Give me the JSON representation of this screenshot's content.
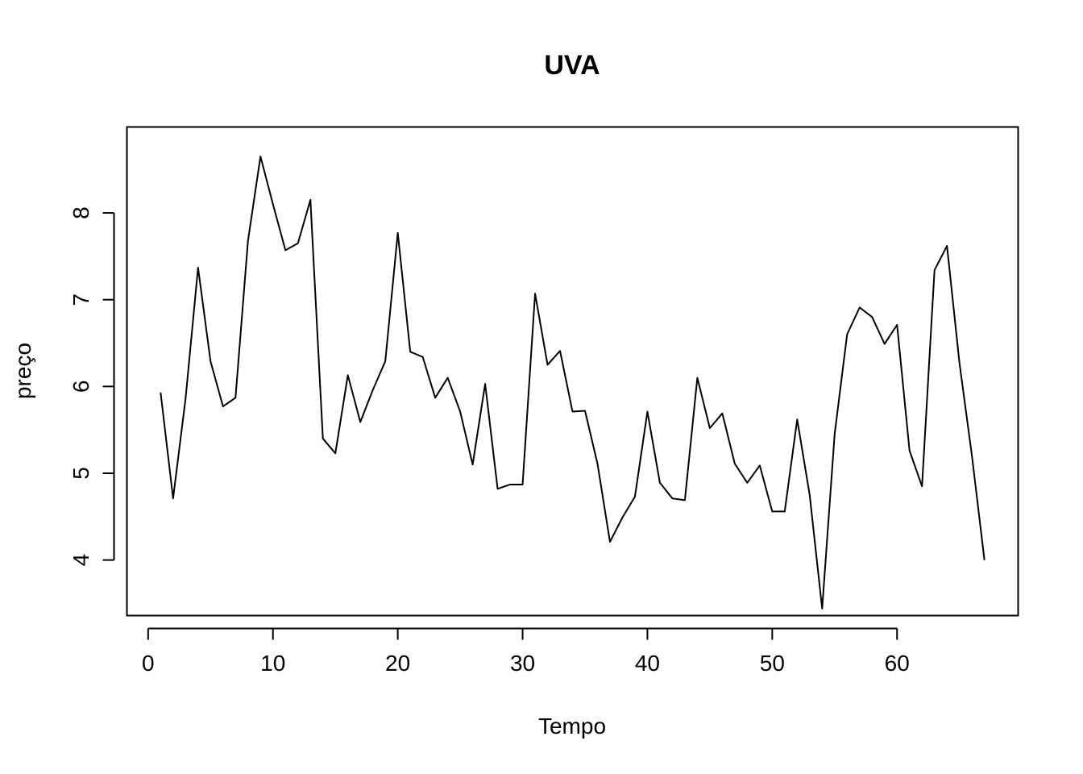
{
  "chart_data": {
    "type": "line",
    "title": "UVA",
    "xlabel": "Tempo",
    "ylabel": "preço",
    "xlim": [
      -1.7,
      69.7
    ],
    "ylim": [
      3.36,
      8.99
    ],
    "x_ticks": [
      0,
      10,
      20,
      30,
      40,
      50,
      60
    ],
    "y_ticks": [
      4,
      5,
      6,
      7,
      8
    ],
    "grid": false,
    "series": [
      {
        "color": "#000000",
        "x": [
          1,
          2,
          3,
          4,
          5,
          6,
          7,
          8,
          9,
          10,
          11,
          12,
          13,
          14,
          15,
          16,
          17,
          18,
          19,
          20,
          21,
          22,
          23,
          24,
          25,
          26,
          27,
          28,
          29,
          30,
          31,
          32,
          33,
          34,
          35,
          36,
          37,
          38,
          39,
          40,
          41,
          42,
          43,
          44,
          45,
          46,
          47,
          48,
          49,
          50,
          51,
          52,
          53,
          54,
          55,
          56,
          57,
          58,
          59,
          60,
          61,
          62,
          63,
          64,
          65,
          66,
          67
        ],
        "values": [
          5.93,
          4.71,
          5.86,
          7.37,
          6.29,
          5.77,
          5.87,
          7.68,
          8.65,
          8.1,
          7.57,
          7.65,
          8.15,
          5.4,
          5.23,
          6.13,
          5.59,
          5.96,
          6.29,
          7.77,
          6.4,
          6.34,
          5.87,
          6.1,
          5.71,
          5.1,
          6.03,
          4.82,
          4.87,
          4.87,
          7.07,
          6.25,
          6.41,
          5.71,
          5.72,
          5.11,
          4.21,
          4.49,
          4.73,
          5.71,
          4.89,
          4.71,
          4.69,
          6.1,
          5.52,
          5.69,
          5.11,
          4.89,
          5.09,
          4.56,
          4.56,
          5.62,
          4.75,
          3.44,
          5.45,
          6.6,
          6.91,
          6.8,
          6.49,
          6.71,
          5.26,
          4.85,
          7.34,
          7.62,
          6.27,
          5.2,
          4.0
        ]
      }
    ]
  }
}
